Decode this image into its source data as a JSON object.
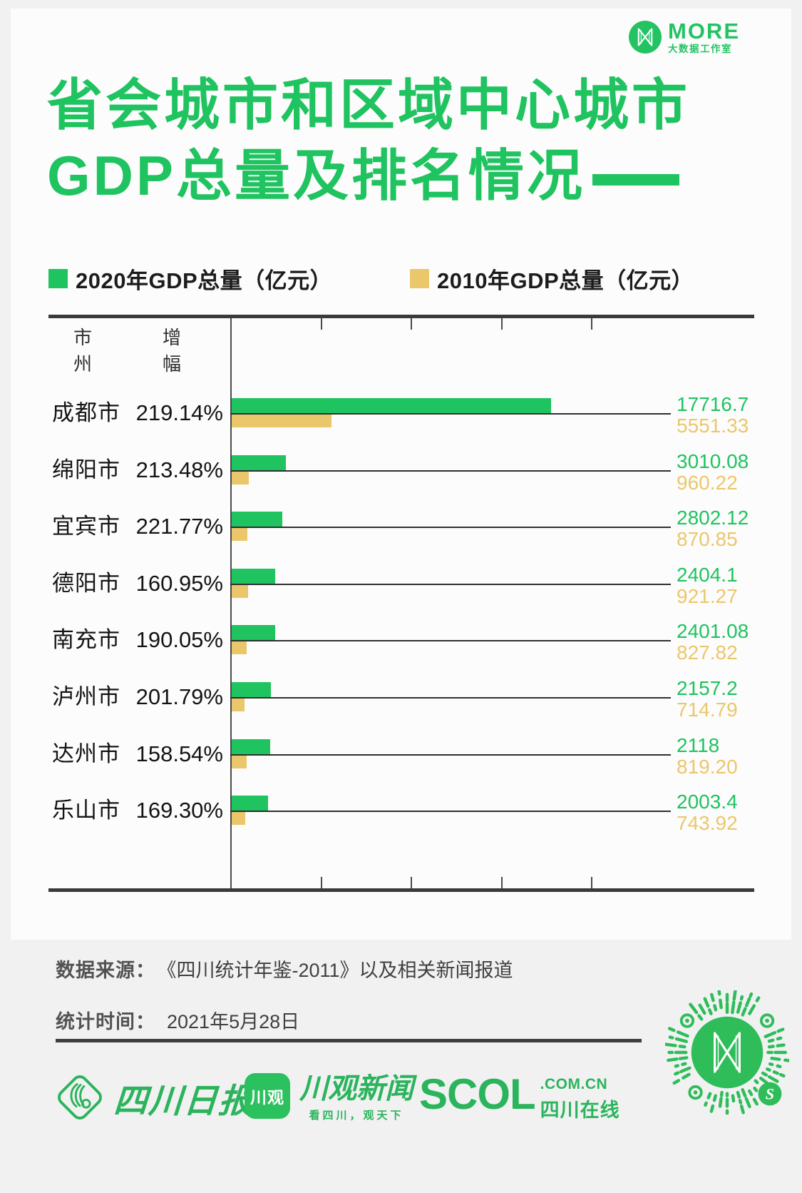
{
  "brand": {
    "name": "MORE",
    "subtitle": "大数据工作室"
  },
  "title": {
    "line1": "省会城市和区域中心城市",
    "line2": "GDP总量及排名情况"
  },
  "legend": [
    {
      "label": "2020年GDP总量（亿元）",
      "color": "#1FC35F"
    },
    {
      "label": "2010年GDP总量（亿元）",
      "color": "#EBC76B"
    }
  ],
  "table_headers": {
    "city": "市州",
    "growth": "增幅"
  },
  "chart_data": {
    "type": "bar",
    "orientation": "horizontal",
    "title": "省会城市和区域中心城市GDP总量及排名情况",
    "unit": "亿元",
    "xlim": [
      0,
      20000
    ],
    "ticks": [
      5000,
      10000,
      15000,
      20000
    ],
    "grid": false,
    "legend_position": "top",
    "series": [
      {
        "name": "2020年GDP总量（亿元）",
        "color": "#1FC35F"
      },
      {
        "name": "2010年GDP总量（亿元）",
        "color": "#EBC76B"
      }
    ],
    "rows": [
      {
        "city": "成都市",
        "growth": "219.14%",
        "gdp_2020": 17716.7,
        "gdp_2010": 5551.33,
        "label_2020": "17716.7",
        "label_2010": "5551.33"
      },
      {
        "city": "绵阳市",
        "growth": "213.48%",
        "gdp_2020": 3010.08,
        "gdp_2010": 960.22,
        "label_2020": "3010.08",
        "label_2010": "960.22"
      },
      {
        "city": "宜宾市",
        "growth": "221.77%",
        "gdp_2020": 2802.12,
        "gdp_2010": 870.85,
        "label_2020": "2802.12",
        "label_2010": "870.85"
      },
      {
        "city": "德阳市",
        "growth": "160.95%",
        "gdp_2020": 2404.1,
        "gdp_2010": 921.27,
        "label_2020": "2404.1",
        "label_2010": "921.27"
      },
      {
        "city": "南充市",
        "growth": "190.05%",
        "gdp_2020": 2401.08,
        "gdp_2010": 827.82,
        "label_2020": "2401.08",
        "label_2010": "827.82"
      },
      {
        "city": "泸州市",
        "growth": "201.79%",
        "gdp_2020": 2157.2,
        "gdp_2010": 714.79,
        "label_2020": "2157.2",
        "label_2010": "714.79"
      },
      {
        "city": "达州市",
        "growth": "158.54%",
        "gdp_2020": 2118,
        "gdp_2010": 819.2,
        "label_2020": "2118",
        "label_2010": "819.20"
      },
      {
        "city": "乐山市",
        "growth": "169.30%",
        "gdp_2020": 2003.4,
        "gdp_2010": 743.92,
        "label_2020": "2003.4",
        "label_2010": "743.92"
      }
    ]
  },
  "footer": {
    "source_label": "数据来源：",
    "source_value": "《四川统计年鉴-2011》以及相关新闻报道",
    "time_label": "统计时间：",
    "time_value": "2021年5月28日"
  },
  "logos": {
    "scrb": "四川日报",
    "cguan_icon": "川观",
    "cguan_name": "川观新闻",
    "cguan_tagline": "看四川，观天下",
    "scol": "SCOL",
    "scol_domain": ".COM.CN",
    "scol_site": "四川在线"
  },
  "colors": {
    "green": "#1FC35F",
    "yellow": "#EBC76B",
    "axis": "#3A3A3A",
    "background": "#F1F1F2",
    "card": "#FCFCFC"
  }
}
